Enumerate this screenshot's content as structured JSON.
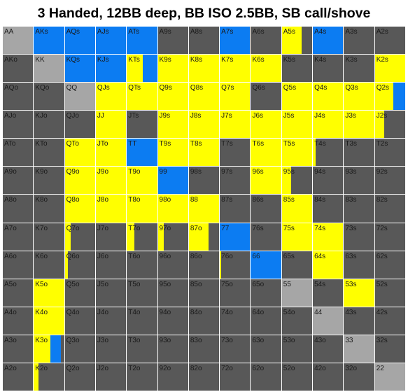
{
  "title": "3 Handed, 12BB deep, BB ISO 2.5BB, SB call/shove",
  "colors": {
    "call": "#ffff00",
    "shove": "#0c7cf2",
    "fold": "#585858",
    "pair": "#a6a6a6",
    "grid_line": "#ffffff",
    "label": "#1a1a1a"
  },
  "grid": {
    "rows": [
      [
        "AA",
        "AKs",
        "AQs",
        "AJs",
        "ATs",
        "A9s",
        "A8s",
        "A7s",
        "A6s",
        "A5s",
        "A4s",
        "A3s",
        "A2s"
      ],
      [
        "AKo",
        "KK",
        "KQs",
        "KJs",
        "KTs",
        "K9s",
        "K8s",
        "K7s",
        "K6s",
        "K5s",
        "K4s",
        "K3s",
        "K2s"
      ],
      [
        "AQo",
        "KQo",
        "QQ",
        "QJs",
        "QTs",
        "Q9s",
        "Q8s",
        "Q7s",
        "Q6s",
        "Q5s",
        "Q4s",
        "Q3s",
        "Q2s"
      ],
      [
        "AJo",
        "KJo",
        "QJo",
        "JJ",
        "JTs",
        "J9s",
        "J8s",
        "J7s",
        "J6s",
        "J5s",
        "J4s",
        "J3s",
        "J2s"
      ],
      [
        "ATo",
        "KTo",
        "QTo",
        "JTo",
        "TT",
        "T9s",
        "T8s",
        "T7s",
        "T6s",
        "T5s",
        "T4s",
        "T3s",
        "T2s"
      ],
      [
        "A9o",
        "K9o",
        "Q9o",
        "J9o",
        "T9o",
        "99",
        "98s",
        "97s",
        "96s",
        "95s",
        "94s",
        "93s",
        "92s"
      ],
      [
        "A8o",
        "K8o",
        "Q8o",
        "J8o",
        "T8o",
        "98o",
        "88",
        "87s",
        "86s",
        "85s",
        "84s",
        "83s",
        "82s"
      ],
      [
        "A7o",
        "K7o",
        "Q7o",
        "J7o",
        "T7o",
        "97o",
        "87o",
        "77",
        "76s",
        "75s",
        "74s",
        "73s",
        "72s"
      ],
      [
        "A6o",
        "K6o",
        "Q6o",
        "J6o",
        "T6o",
        "96o",
        "86o",
        "76o",
        "66",
        "65s",
        "64s",
        "63s",
        "62s"
      ],
      [
        "A5o",
        "K5o",
        "Q5o",
        "J5o",
        "T5o",
        "95o",
        "85o",
        "75o",
        "65o",
        "55",
        "54s",
        "53s",
        "52s"
      ],
      [
        "A4o",
        "K4o",
        "Q4o",
        "J4o",
        "T4o",
        "94o",
        "84o",
        "74o",
        "64o",
        "54o",
        "44",
        "43s",
        "42s"
      ],
      [
        "A3o",
        "K3o",
        "Q3o",
        "J3o",
        "T3o",
        "93o",
        "83o",
        "73o",
        "63o",
        "53o",
        "43o",
        "33",
        "32s"
      ],
      [
        "A2o",
        "K2o",
        "Q2o",
        "J2o",
        "T2o",
        "92o",
        "82o",
        "72o",
        "62o",
        "52o",
        "42o",
        "32o",
        "22"
      ]
    ],
    "legend": {
      "call": "yellow",
      "shove": "blue"
    },
    "fills": {
      "AKs": [
        [
          "blue",
          1
        ]
      ],
      "AQs": [
        [
          "blue",
          1
        ]
      ],
      "AJs": [
        [
          "blue",
          1
        ]
      ],
      "ATs": [
        [
          "blue",
          1
        ]
      ],
      "A7s": [
        [
          "blue",
          1
        ]
      ],
      "A5s": [
        [
          "yellow",
          0.65
        ]
      ],
      "A4s": [
        [
          "blue",
          1
        ]
      ],
      "KQs": [
        [
          "blue",
          1
        ]
      ],
      "KJs": [
        [
          "blue",
          1
        ]
      ],
      "KTs": [
        [
          "yellow",
          0.52
        ],
        [
          "blue",
          0.48
        ]
      ],
      "K9s": [
        [
          "yellow",
          1
        ]
      ],
      "K8s": [
        [
          "yellow",
          1
        ]
      ],
      "K7s": [
        [
          "yellow",
          1
        ]
      ],
      "K6s": [
        [
          "yellow",
          1
        ]
      ],
      "K2s": [
        [
          "yellow",
          1
        ]
      ],
      "QJs": [
        [
          "yellow",
          1
        ]
      ],
      "QTs": [
        [
          "yellow",
          1
        ]
      ],
      "Q9s": [
        [
          "yellow",
          1
        ]
      ],
      "Q8s": [
        [
          "yellow",
          1
        ]
      ],
      "Q7s": [
        [
          "yellow",
          1
        ]
      ],
      "Q5s": [
        [
          "yellow",
          1
        ]
      ],
      "Q4s": [
        [
          "yellow",
          1
        ]
      ],
      "Q3s": [
        [
          "yellow",
          1
        ]
      ],
      "Q2s": [
        [
          "yellow",
          0.6
        ],
        [
          "blue",
          0.4
        ]
      ],
      "JJ": [
        [
          "yellow",
          1
        ]
      ],
      "J9s": [
        [
          "yellow",
          1
        ]
      ],
      "J8s": [
        [
          "yellow",
          1
        ]
      ],
      "J7s": [
        [
          "yellow",
          1
        ]
      ],
      "J6s": [
        [
          "yellow",
          1
        ]
      ],
      "J5s": [
        [
          "yellow",
          1
        ]
      ],
      "J4s": [
        [
          "yellow",
          1
        ]
      ],
      "J3s": [
        [
          "yellow",
          1
        ]
      ],
      "J2s": [
        [
          "yellow",
          0.3
        ]
      ],
      "QTo": [
        [
          "yellow",
          1
        ]
      ],
      "JTo": [
        [
          "yellow",
          1
        ]
      ],
      "TT": [
        [
          "blue",
          1
        ]
      ],
      "T9s": [
        [
          "yellow",
          1
        ]
      ],
      "T8s": [
        [
          "yellow",
          1
        ]
      ],
      "T6s": [
        [
          "yellow",
          1
        ]
      ],
      "T5s": [
        [
          "yellow",
          1
        ]
      ],
      "T4s": [
        [
          "yellow",
          0.1
        ]
      ],
      "Q9o": [
        [
          "yellow",
          1
        ]
      ],
      "J9o": [
        [
          "yellow",
          1
        ]
      ],
      "T9o": [
        [
          "yellow",
          1
        ]
      ],
      "99": [
        [
          "blue",
          1
        ]
      ],
      "96s": [
        [
          "yellow",
          1
        ]
      ],
      "95s": [
        [
          "yellow",
          0.3
        ]
      ],
      "Q8o": [
        [
          "yellow",
          1
        ]
      ],
      "J8o": [
        [
          "yellow",
          1
        ]
      ],
      "T8o": [
        [
          "yellow",
          1
        ]
      ],
      "98o": [
        [
          "yellow",
          1
        ]
      ],
      "88": [
        [
          "yellow",
          1
        ]
      ],
      "85s": [
        [
          "yellow",
          1
        ]
      ],
      "Q7o": [
        [
          "yellow",
          0.2
        ]
      ],
      "T7o": [
        [
          "yellow",
          0.25
        ]
      ],
      "97o": [
        [
          "yellow",
          0.2
        ]
      ],
      "87o": [
        [
          "yellow",
          0.65
        ]
      ],
      "77": [
        [
          "blue",
          1
        ]
      ],
      "75s": [
        [
          "yellow",
          1
        ]
      ],
      "74s": [
        [
          "yellow",
          1
        ]
      ],
      "Q6o": [
        [
          "yellow",
          0.1
        ]
      ],
      "76o": [
        [
          "yellow",
          0.05
        ]
      ],
      "66": [
        [
          "blue",
          1
        ]
      ],
      "64s": [
        [
          "yellow",
          1
        ]
      ],
      "K5o": [
        [
          "yellow",
          1
        ]
      ],
      "53s": [
        [
          "yellow",
          1
        ]
      ],
      "K4o": [
        [
          "yellow",
          1
        ]
      ],
      "K3o": [
        [
          "yellow",
          0.55
        ],
        [
          "blue",
          0.35
        ]
      ],
      "K2o": [
        [
          "yellow",
          0.15
        ]
      ]
    }
  }
}
